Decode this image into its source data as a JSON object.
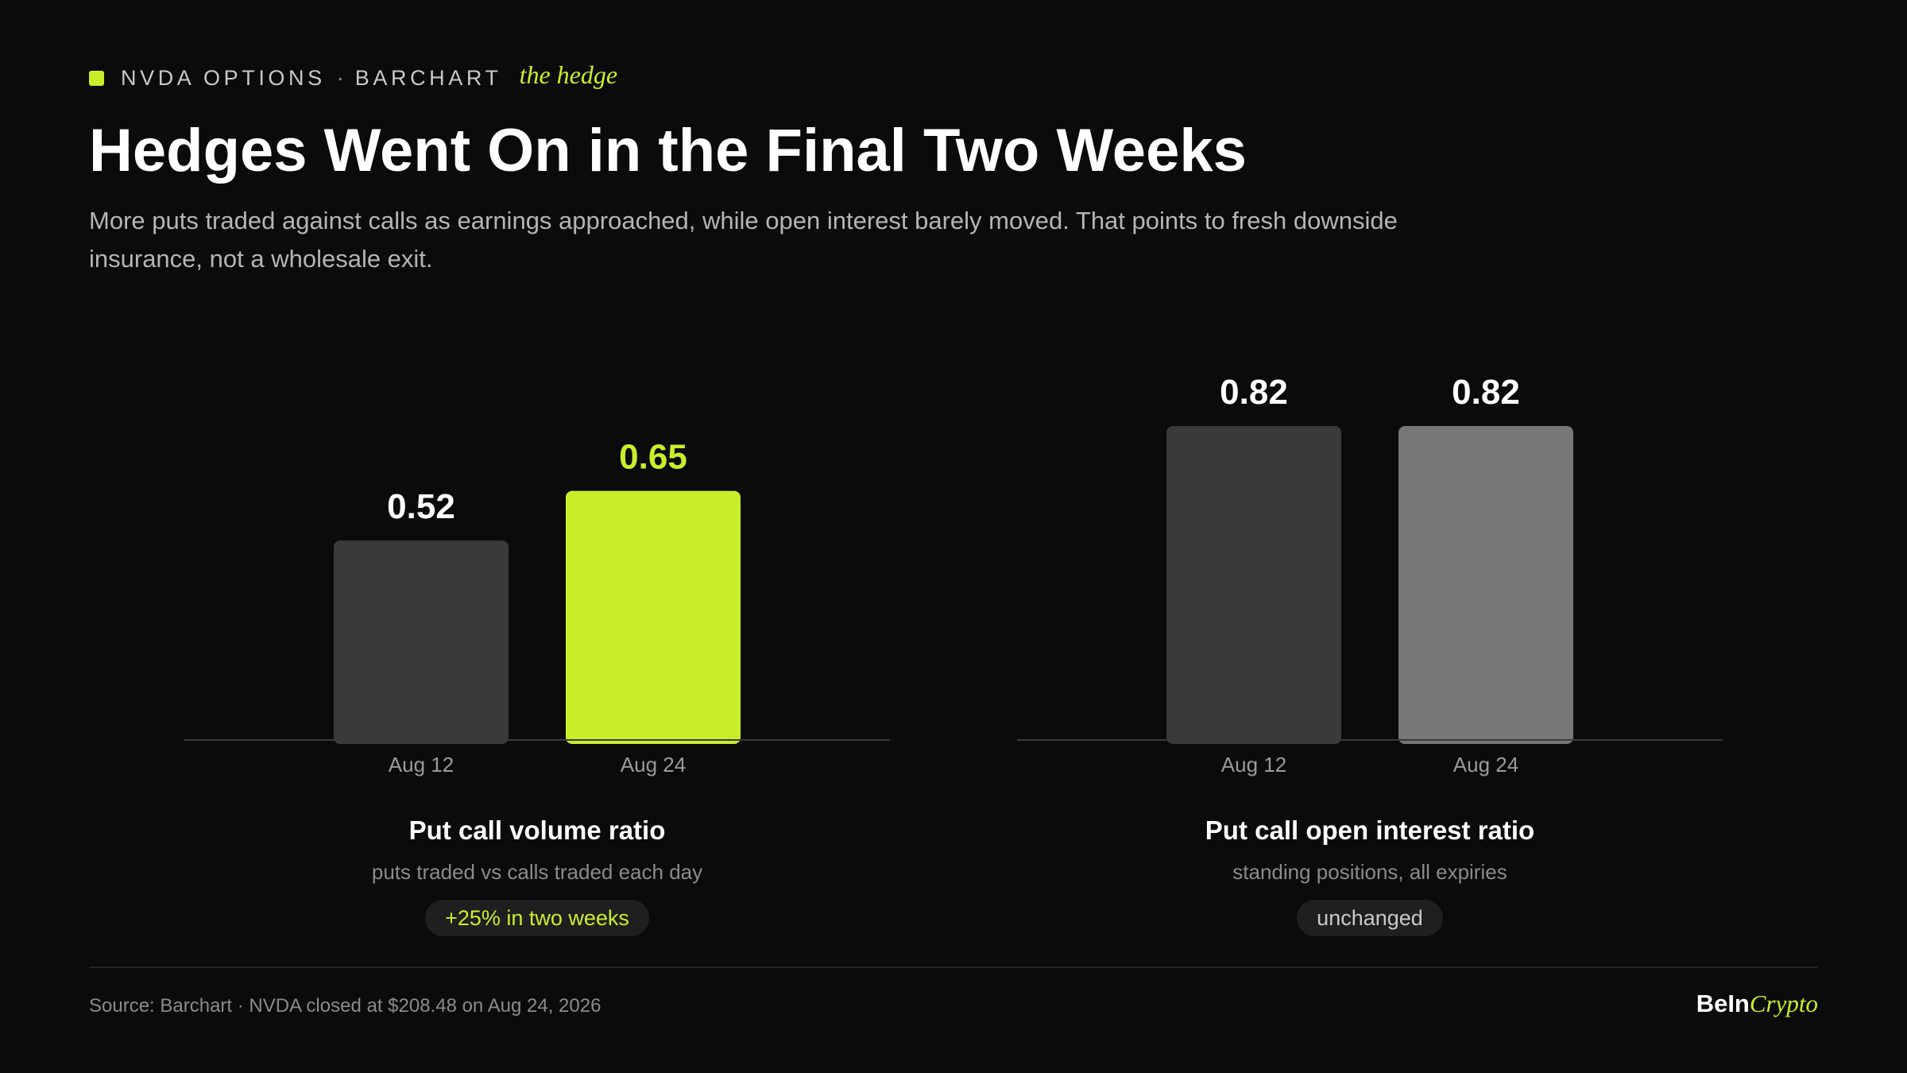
{
  "header": {
    "kicker_left": "NVDA OPTIONS",
    "kicker_sep": "·",
    "kicker_right": "BARCHART",
    "kicker_italic": "the hedge",
    "title": "Hedges Went On in the Final Two Weeks",
    "subtitle": "More puts traded against calls as earnings approached, while open interest barely moved. That points to fresh downside insurance, not a wholesale exit."
  },
  "chart_data": [
    {
      "type": "bar",
      "categories": [
        "Aug 12",
        "Aug 24"
      ],
      "values": [
        0.52,
        0.65
      ],
      "value_labels": [
        "0.52",
        "0.65"
      ],
      "bar_colors": [
        "#3a3a3a",
        "#c8ef2a"
      ],
      "label_colors": [
        "#ffffff",
        "#c8ef2a"
      ],
      "title": "Put call volume ratio",
      "subtitle": "puts traded vs calls traded each day",
      "note": "+25% in two weeks",
      "ylim": [
        0,
        0.82
      ],
      "grid": false
    },
    {
      "type": "bar",
      "categories": [
        "Aug 12",
        "Aug 24"
      ],
      "values": [
        0.82,
        0.82
      ],
      "value_labels": [
        "0.82",
        "0.82"
      ],
      "bar_colors": [
        "#3a3a3a",
        "#777777"
      ],
      "label_colors": [
        "#ffffff",
        "#ffffff"
      ],
      "title": "Put call open interest ratio",
      "subtitle": "standing positions, all expiries",
      "note": "unchanged",
      "ylim": [
        0,
        0.82
      ],
      "grid": false
    }
  ],
  "footer": {
    "source": "Source: Barchart · NVDA closed at $208.48 on Aug 24, 2026",
    "brand_main": "BeIn",
    "brand_accent": "Crypto"
  },
  "colors": {
    "background": "#0b0b0b",
    "accent": "#c8ef2a",
    "bar_dark": "#3a3a3a",
    "bar_gray": "#777777"
  }
}
